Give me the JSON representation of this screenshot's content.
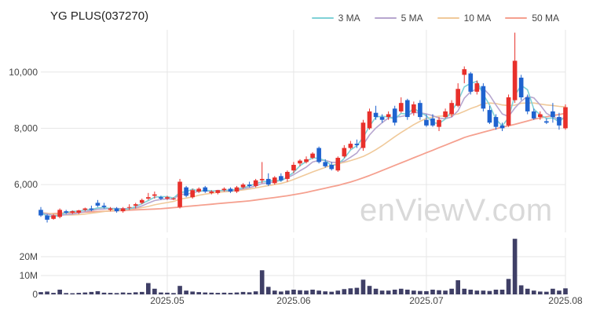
{
  "chart_data": {
    "type": "candlestick",
    "title": "YG PLUS(037270)",
    "watermark": "enViewV.com",
    "legend": [
      {
        "name": "3 MA",
        "color": "#7fd1d6"
      },
      {
        "name": "5 MA",
        "color": "#b7a6cf"
      },
      {
        "name": "10 MA",
        "color": "#f0c99a"
      },
      {
        "name": "50 MA",
        "color": "#f5a08f"
      }
    ],
    "colors": {
      "up": "#e8302b",
      "down": "#1f63cf",
      "volume": "#3f3f66",
      "grid": "#e6e6e6"
    },
    "price_axis": {
      "min": 4300,
      "max": 11500,
      "ticks": [
        6000,
        8000,
        10000
      ],
      "tick_labels": [
        "6,000",
        "8,000",
        "10,000"
      ]
    },
    "volume_axis": {
      "min": 0,
      "max": 30000000,
      "ticks": [
        0,
        10000000,
        20000000
      ],
      "tick_labels": [
        "0",
        "10M",
        "20M"
      ]
    },
    "x_ticks": [
      {
        "index": 20,
        "label": "2025.05"
      },
      {
        "index": 40,
        "label": "2025.06"
      },
      {
        "index": 61,
        "label": "2025.07"
      },
      {
        "index": 83,
        "label": "2025.08"
      }
    ],
    "candles": [
      [
        5100,
        5200,
        4850,
        4900,
        1200000
      ],
      [
        4900,
        4950,
        4650,
        4750,
        1500000
      ],
      [
        4780,
        4950,
        4750,
        4900,
        800000
      ],
      [
        4850,
        5150,
        4800,
        5100,
        2500000
      ],
      [
        5050,
        5100,
        4950,
        5000,
        700000
      ],
      [
        5000,
        5080,
        4950,
        5050,
        600000
      ],
      [
        5000,
        5100,
        4950,
        5080,
        800000
      ],
      [
        5100,
        5180,
        5050,
        5150,
        1000000
      ],
      [
        5150,
        5250,
        5050,
        5100,
        1300000
      ],
      [
        5350,
        5450,
        5200,
        5250,
        1700000
      ],
      [
        5250,
        5350,
        5150,
        5200,
        900000
      ],
      [
        5100,
        5200,
        5050,
        5150,
        800000
      ],
      [
        5150,
        5200,
        5000,
        5050,
        700000
      ],
      [
        5050,
        5200,
        5000,
        5150,
        1000000
      ],
      [
        5200,
        5300,
        5100,
        5200,
        800000
      ],
      [
        5250,
        5350,
        5150,
        5300,
        1100000
      ],
      [
        5350,
        5500,
        5300,
        5450,
        1300000
      ],
      [
        5500,
        5700,
        5450,
        5550,
        6000000
      ],
      [
        5600,
        5750,
        5500,
        5650,
        3000000
      ],
      [
        5550,
        5600,
        5450,
        5500,
        1000000
      ],
      [
        5500,
        5600,
        5450,
        5550,
        900000
      ],
      [
        5500,
        5550,
        5450,
        5500,
        700000
      ],
      [
        5200,
        6200,
        5150,
        6100,
        4500000
      ],
      [
        5900,
        5950,
        5550,
        5600,
        2000000
      ],
      [
        5550,
        5850,
        5500,
        5800,
        1500000
      ],
      [
        5750,
        5900,
        5700,
        5850,
        1200000
      ],
      [
        5900,
        5950,
        5700,
        5750,
        1000000
      ],
      [
        5700,
        5800,
        5650,
        5750,
        900000
      ],
      [
        5700,
        5800,
        5650,
        5800,
        800000
      ],
      [
        5800,
        5900,
        5750,
        5850,
        900000
      ],
      [
        5850,
        5900,
        5700,
        5750,
        800000
      ],
      [
        5750,
        5950,
        5700,
        5900,
        1000000
      ],
      [
        5900,
        6050,
        5850,
        6000,
        1300000
      ],
      [
        6000,
        6100,
        5900,
        5950,
        1100000
      ],
      [
        5950,
        6200,
        5900,
        6150,
        1600000
      ],
      [
        6150,
        6800,
        6050,
        6200,
        12800000
      ],
      [
        6200,
        6400,
        5950,
        6000,
        4000000
      ],
      [
        6050,
        6300,
        6000,
        6250,
        2000000
      ],
      [
        6300,
        6400,
        6100,
        6150,
        1500000
      ],
      [
        6200,
        6500,
        6100,
        6450,
        2000000
      ],
      [
        6500,
        6800,
        6400,
        6700,
        2500000
      ],
      [
        6750,
        6900,
        6650,
        6850,
        2200000
      ],
      [
        6800,
        7000,
        6750,
        6900,
        2000000
      ],
      [
        6950,
        7150,
        6900,
        7100,
        2500000
      ],
      [
        7300,
        7350,
        6750,
        6800,
        2000000
      ],
      [
        6800,
        6900,
        6600,
        6650,
        1600000
      ],
      [
        6700,
        6800,
        6500,
        6550,
        1400000
      ],
      [
        6500,
        7000,
        6450,
        6950,
        2000000
      ],
      [
        7000,
        7400,
        6950,
        7300,
        2800000
      ],
      [
        7300,
        7550,
        7250,
        7450,
        3200000
      ],
      [
        7450,
        7600,
        7300,
        7400,
        3500000
      ],
      [
        7300,
        8300,
        7200,
        8200,
        7800000
      ],
      [
        8000,
        8700,
        7950,
        8600,
        4500000
      ],
      [
        8550,
        8800,
        8300,
        8400,
        3000000
      ],
      [
        8400,
        8500,
        8200,
        8300,
        2000000
      ],
      [
        8400,
        8600,
        8300,
        8500,
        2000000
      ],
      [
        8700,
        8800,
        8100,
        8200,
        2500000
      ],
      [
        8600,
        9100,
        8550,
        8900,
        3000000
      ],
      [
        9000,
        9050,
        8300,
        8400,
        2500000
      ],
      [
        8550,
        8950,
        8450,
        8850,
        2000000
      ],
      [
        8900,
        9000,
        8300,
        8400,
        1800000
      ],
      [
        8300,
        8500,
        8050,
        8100,
        1700000
      ],
      [
        8350,
        8500,
        8050,
        8100,
        2500000
      ],
      [
        8050,
        8400,
        7900,
        8300,
        2200000
      ],
      [
        8400,
        8700,
        8350,
        8600,
        2000000
      ],
      [
        8500,
        9000,
        8400,
        8900,
        3000000
      ],
      [
        8800,
        9600,
        8750,
        9400,
        7500000
      ],
      [
        9900,
        10200,
        9600,
        10100,
        3000000
      ],
      [
        9950,
        10000,
        9200,
        9300,
        2500000
      ],
      [
        9300,
        9700,
        9200,
        9600,
        2000000
      ],
      [
        9500,
        9600,
        8600,
        8700,
        2000000
      ],
      [
        8650,
        8800,
        8150,
        8200,
        1800000
      ],
      [
        8400,
        8500,
        7950,
        8050,
        2500000
      ],
      [
        8100,
        8200,
        7900,
        8000,
        2500000
      ],
      [
        8100,
        9200,
        8050,
        9100,
        8200000
      ],
      [
        9000,
        11400,
        8900,
        10400,
        29500000
      ],
      [
        9800,
        9900,
        9000,
        9100,
        4800000
      ],
      [
        9100,
        9200,
        8500,
        8600,
        3000000
      ],
      [
        8600,
        8700,
        8300,
        8350,
        2000000
      ],
      [
        8400,
        8600,
        8300,
        8500,
        1500000
      ],
      [
        8250,
        8350,
        8150,
        8200,
        1400000
      ],
      [
        8600,
        8900,
        8200,
        8400,
        3000000
      ],
      [
        8400,
        8550,
        7950,
        8100,
        2000000
      ],
      [
        8000,
        8850,
        7950,
        8750,
        3200000
      ]
    ],
    "ma3": [
      5000,
      4880,
      4850,
      4920,
      5000,
      5050,
      5045,
      5100,
      5110,
      5170,
      5180,
      5150,
      5130,
      5120,
      5130,
      5220,
      5320,
      5430,
      5550,
      5570,
      5570,
      5520,
      5720,
      5740,
      5840,
      5750,
      5800,
      5780,
      5770,
      5800,
      5800,
      5830,
      5880,
      5950,
      6030,
      6100,
      6120,
      6150,
      6130,
      6280,
      6430,
      6670,
      6820,
      6950,
      6930,
      6850,
      6670,
      6720,
      6930,
      7230,
      7380,
      7680,
      8070,
      8400,
      8430,
      8400,
      8330,
      8530,
      8500,
      8720,
      8550,
      8450,
      8200,
      8170,
      8330,
      8600,
      8970,
      9470,
      9600,
      9670,
      9200,
      8830,
      8320,
      8080,
      8380,
      9170,
      9530,
      9370,
      8680,
      8480,
      8350,
      8370,
      8230,
      8420
    ],
    "ma5": [
      5000,
      4950,
      4900,
      4900,
      4930,
      4950,
      4990,
      5040,
      5080,
      5120,
      5130,
      5150,
      5150,
      5140,
      5150,
      5170,
      5240,
      5340,
      5430,
      5470,
      5490,
      5490,
      5650,
      5650,
      5710,
      5760,
      5780,
      5750,
      5790,
      5780,
      5780,
      5800,
      5850,
      5890,
      5950,
      6040,
      6060,
      6100,
      6150,
      6240,
      6350,
      6490,
      6620,
      6800,
      6860,
      6860,
      6790,
      6790,
      6830,
      6970,
      7120,
      7420,
      7760,
      8010,
      8200,
      8370,
      8400,
      8420,
      8460,
      8560,
      8550,
      8510,
      8450,
      8360,
      8340,
      8400,
      8620,
      9070,
      9300,
      9400,
      9420,
      9180,
      8830,
      8510,
      8420,
      8720,
      8960,
      9140,
      9080,
      8830,
      8530,
      8410,
      8310,
      8390
    ],
    "ma10": [
      5000,
      4980,
      4950,
      4930,
      4920,
      4920,
      4930,
      4950,
      4980,
      5010,
      5040,
      5070,
      5090,
      5110,
      5130,
      5150,
      5180,
      5220,
      5280,
      5320,
      5360,
      5400,
      5480,
      5520,
      5560,
      5620,
      5660,
      5690,
      5730,
      5740,
      5760,
      5780,
      5810,
      5840,
      5880,
      5920,
      5960,
      6000,
      6040,
      6100,
      6180,
      6270,
      6360,
      6450,
      6530,
      6610,
      6680,
      6740,
      6790,
      6850,
      6920,
      7000,
      7110,
      7240,
      7380,
      7540,
      7700,
      7850,
      7990,
      8130,
      8250,
      8350,
      8400,
      8430,
      8440,
      8470,
      8510,
      8600,
      8700,
      8780,
      8880,
      8900,
      8880,
      8830,
      8810,
      8820,
      8890,
      8900,
      8900,
      8860,
      8830,
      8810,
      8780,
      8760
    ],
    "ma50": [
      4950,
      4960,
      4970,
      4980,
      4990,
      5000,
      5010,
      5020,
      5030,
      5040,
      5050,
      5060,
      5070,
      5080,
      5090,
      5100,
      5110,
      5120,
      5130,
      5140,
      5160,
      5180,
      5200,
      5220,
      5240,
      5260,
      5280,
      5300,
      5320,
      5340,
      5360,
      5380,
      5400,
      5420,
      5450,
      5480,
      5510,
      5540,
      5570,
      5600,
      5640,
      5680,
      5720,
      5770,
      5820,
      5870,
      5920,
      5970,
      6030,
      6090,
      6160,
      6240,
      6320,
      6410,
      6500,
      6590,
      6680,
      6770,
      6860,
      6950,
      7040,
      7130,
      7220,
      7310,
      7400,
      7490,
      7580,
      7670,
      7740,
      7800,
      7860,
      7920,
      7980,
      8040,
      8090,
      8140,
      8200,
      8260,
      8320,
      8370,
      8410,
      8450,
      8490,
      8530
    ]
  }
}
